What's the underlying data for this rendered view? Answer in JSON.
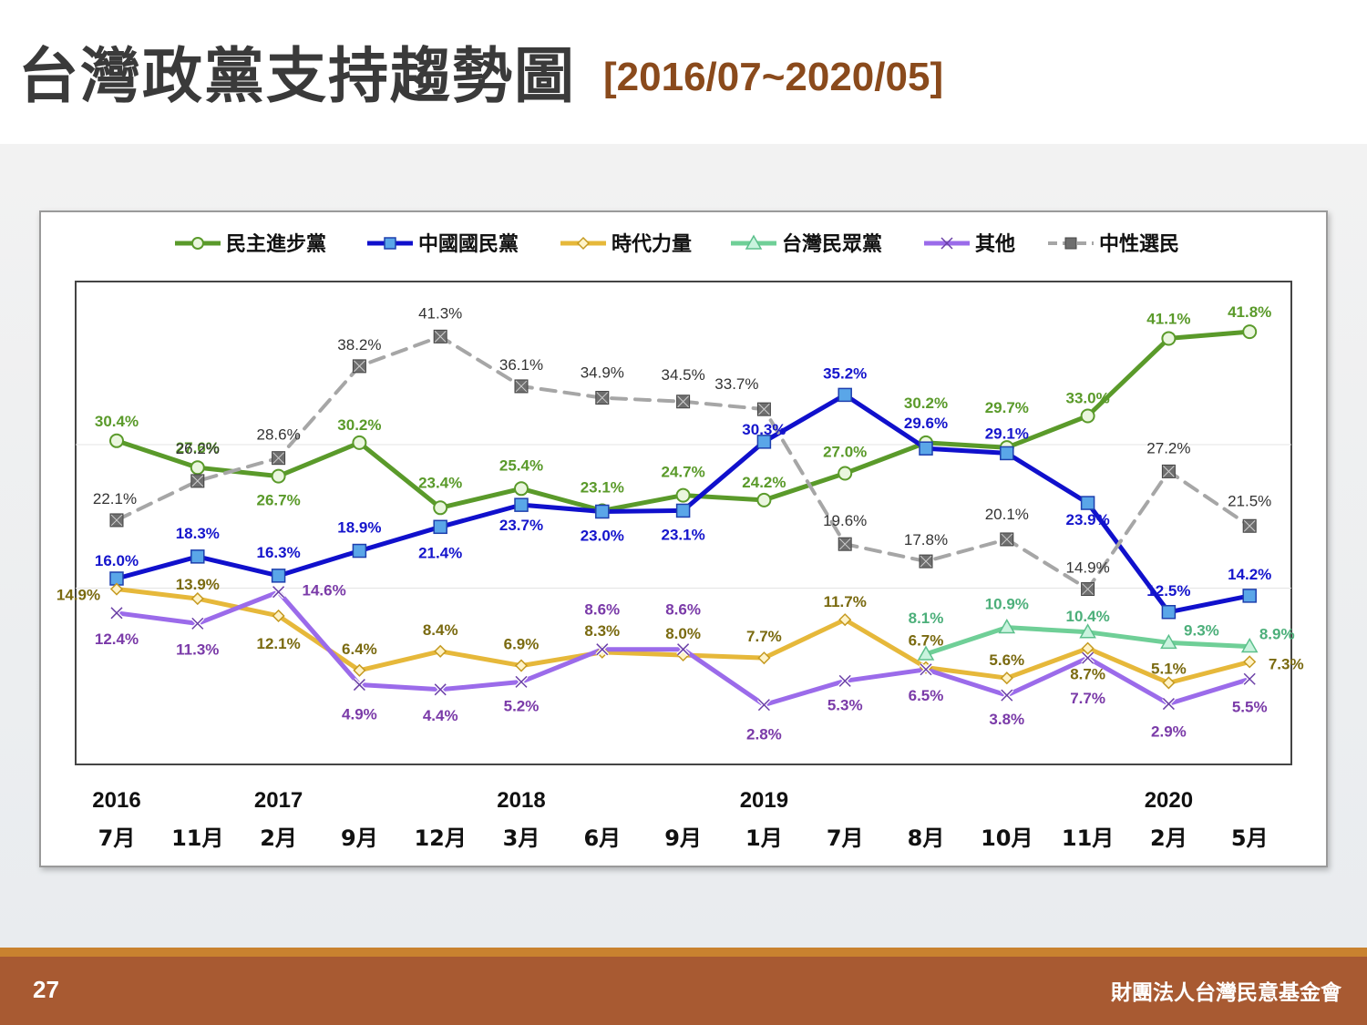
{
  "header": {
    "title": "台灣政黨支持趨勢圖",
    "subtitle": "[2016/07~2020/05]"
  },
  "footer": {
    "page_number": "27",
    "organization": "財團法人台灣民意基金會"
  },
  "chart_data": {
    "type": "line",
    "title": "",
    "xlabel": "",
    "ylabel": "",
    "ylim": [
      0,
      50
    ],
    "grid": "horizontal",
    "legend_position": "top",
    "years": [
      "2016",
      "2017",
      "2018",
      "2019",
      "2020"
    ],
    "categories": [
      "7月",
      "11月",
      "2月",
      "9月",
      "12月",
      "3月",
      "6月",
      "9月",
      "1月",
      "7月",
      "8月",
      "10月",
      "11月",
      "2月",
      "5月"
    ],
    "series": [
      {
        "name": "民主進步黨",
        "color": "#5a9a2a",
        "label_color": "#5a9a2a",
        "marker": "circle",
        "dash": false,
        "values": [
          30.4,
          27.6,
          26.7,
          30.2,
          23.4,
          25.4,
          23.1,
          24.7,
          24.2,
          27.0,
          30.2,
          29.7,
          33.0,
          41.1,
          41.8
        ],
        "labels": [
          "30.4%",
          "27.6%",
          "26.7%",
          "30.2%",
          "23.4%",
          "25.4%",
          "23.1%",
          "24.7%",
          "24.2%",
          "27.0%",
          "30.2%",
          "29.7%",
          "33.0%",
          "41.1%",
          "41.8%"
        ]
      },
      {
        "name": "中國國民黨",
        "color": "#1010cc",
        "label_color": "#1515cc",
        "marker": "square",
        "dash": false,
        "values": [
          16.0,
          18.3,
          16.3,
          18.9,
          21.4,
          23.7,
          23.0,
          23.1,
          30.3,
          35.2,
          29.6,
          29.1,
          23.9,
          12.5,
          14.2
        ],
        "labels": [
          "16.0%",
          "18.3%",
          "16.3%",
          "18.9%",
          "21.4%",
          "23.7%",
          "23.0%",
          "23.1%",
          "30.3%",
          "35.2%",
          "29.6%",
          "29.1%",
          "23.9%",
          "12.5%",
          "14.2%"
        ]
      },
      {
        "name": "時代力量",
        "color": "#e6b83a",
        "label_color": "#7a6a10",
        "marker": "diamond",
        "dash": false,
        "values": [
          14.9,
          13.9,
          12.1,
          6.4,
          8.4,
          6.9,
          8.3,
          8.0,
          7.7,
          11.7,
          6.7,
          5.6,
          8.7,
          5.1,
          7.3
        ],
        "labels": [
          "14.9%",
          "13.9%",
          "12.1%",
          "6.4%",
          "8.4%",
          "6.9%",
          "8.3%",
          "8.0%",
          "7.7%",
          "11.7%",
          "6.7%",
          "5.6%",
          "8.7%",
          "5.1%",
          "7.3%"
        ]
      },
      {
        "name": "台灣民眾黨",
        "color": "#6fcf97",
        "label_color": "#4caf7a",
        "marker": "triangle",
        "dash": false,
        "start_index": 10,
        "values": [
          null,
          null,
          null,
          null,
          null,
          null,
          null,
          null,
          null,
          null,
          8.1,
          10.9,
          10.4,
          9.3,
          8.9
        ],
        "labels": [
          "",
          "",
          "",
          "",
          "",
          "",
          "",
          "",
          "",
          "",
          "8.1%",
          "10.9%",
          "10.4%",
          "9.3%",
          "8.9%"
        ]
      },
      {
        "name": "其他",
        "color": "#9b6bea",
        "label_color": "#7a3aa8",
        "marker": "x",
        "dash": false,
        "values": [
          12.4,
          11.3,
          14.6,
          4.9,
          4.4,
          5.2,
          8.6,
          8.6,
          2.8,
          5.3,
          6.5,
          3.8,
          7.7,
          2.9,
          5.5
        ],
        "labels": [
          "12.4%",
          "11.3%",
          "14.6%",
          "4.9%",
          "4.4%",
          "5.2%",
          "8.6%",
          "8.6%",
          "2.8%",
          "5.3%",
          "6.5%",
          "3.8%",
          "7.7%",
          "2.9%",
          "5.5%"
        ]
      },
      {
        "name": "中性選民",
        "color": "#a6a6a6",
        "label_color": "#333333",
        "marker": "xsquare",
        "dash": true,
        "values": [
          22.1,
          26.2,
          28.6,
          38.2,
          41.3,
          36.1,
          34.9,
          34.5,
          33.7,
          19.6,
          17.8,
          20.1,
          14.9,
          27.2,
          21.5
        ],
        "labels": [
          "22.1%",
          "26.2%",
          "28.6%",
          "38.2%",
          "41.3%",
          "36.1%",
          "34.9%",
          "34.5%",
          "33.7%",
          "19.6%",
          "17.8%",
          "20.1%",
          "14.9%",
          "27.2%",
          "21.5%"
        ]
      }
    ]
  }
}
